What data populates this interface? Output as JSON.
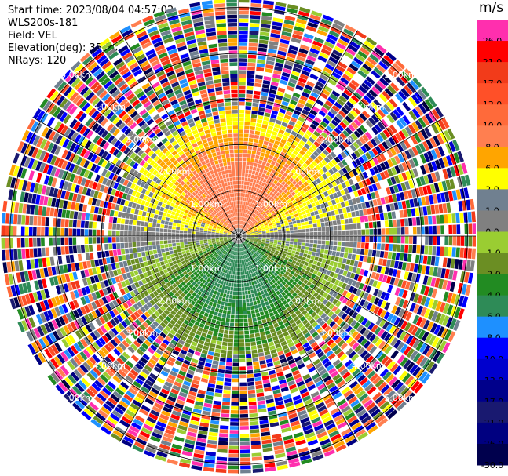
{
  "header": {
    "start_time": "Start time: 2023/08/04 04:57:02",
    "instrument": "WLS200s-181",
    "field": "Field: VEL",
    "elevation": "Elevation(deg): 35.30",
    "nrays": "NRays: 120"
  },
  "colorbar": {
    "unit": "m/s",
    "levels": [
      {
        "label": "26.0",
        "color": "#ff2fae"
      },
      {
        "label": "21.0",
        "color": "#ff0000"
      },
      {
        "label": "17.0",
        "color": "#f23b1a"
      },
      {
        "label": "13.0",
        "color": "#ff5028"
      },
      {
        "label": "10.0",
        "color": "#ff6a3a"
      },
      {
        "label": "8.0",
        "color": "#ff7f50"
      },
      {
        "label": "6.0",
        "color": "#ffa500"
      },
      {
        "label": "2.0",
        "color": "#ffff00"
      },
      {
        "label": "1.0",
        "color": "#708090"
      },
      {
        "label": "0.0",
        "color": "#808080"
      },
      {
        "label": "-1.0",
        "color": "#9acd32"
      },
      {
        "label": "-2.0",
        "color": "#6b8e23"
      },
      {
        "label": "-4.0",
        "color": "#228b22"
      },
      {
        "label": "-6.0",
        "color": "#2e8b57"
      },
      {
        "label": "-8.0",
        "color": "#1e90ff"
      },
      {
        "label": "-10.0",
        "color": "#0000ff"
      },
      {
        "label": "-13.0",
        "color": "#0000cd"
      },
      {
        "label": "-17.0",
        "color": "#00008b"
      },
      {
        "label": "-21.0",
        "color": "#191970"
      },
      {
        "label": "-26.0",
        "color": "#000080"
      },
      {
        "label": "-30.0",
        "color": "#00004d"
      }
    ]
  },
  "chart_data": {
    "type": "heatmap",
    "projection": "polar PPI",
    "field": "VEL",
    "nrays": 120,
    "range_rings_km": [
      1,
      2,
      3,
      4,
      5
    ],
    "range_labels": [
      "1.00km",
      "2.00km",
      "3.00km",
      "4.00km",
      "5.00km"
    ],
    "max_range_km": 5.2,
    "vmin": -30,
    "vmax": 26,
    "pattern": "positive velocities (yellow/orange/salmon up to ~8 m/s) in north half within ~2.7 km, negative velocities (olive/green down to ~-6 m/s) in south half, noise beyond ~2.7 km"
  },
  "colors": {
    "grid": "#000000",
    "ring_label": "#ffffff"
  }
}
